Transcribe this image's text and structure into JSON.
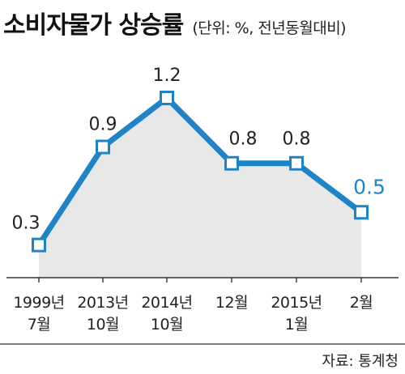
{
  "chart_data": {
    "type": "line",
    "title": "소비자물가 상승률",
    "subtitle": "(단위: %, 전년동월대비)",
    "categories": [
      [
        "1999년",
        "7월"
      ],
      [
        "2013년",
        "10월"
      ],
      [
        "2014년",
        "10월"
      ],
      [
        "12월"
      ],
      [
        "2015년",
        "1월"
      ],
      [
        "2월"
      ]
    ],
    "values": [
      0.3,
      0.9,
      1.2,
      0.8,
      0.8,
      0.5
    ],
    "value_labels": [
      "0.3",
      "0.9",
      "1.2",
      "0.8",
      "0.8",
      "0.5"
    ],
    "ylim": [
      0.1,
      1.2
    ],
    "grid": false,
    "colors": {
      "line": "#1E84C6",
      "area": "#E8E8E8",
      "highlight_label": "#1E84C6",
      "label": "#222222"
    }
  },
  "source": "자료: 통계청"
}
